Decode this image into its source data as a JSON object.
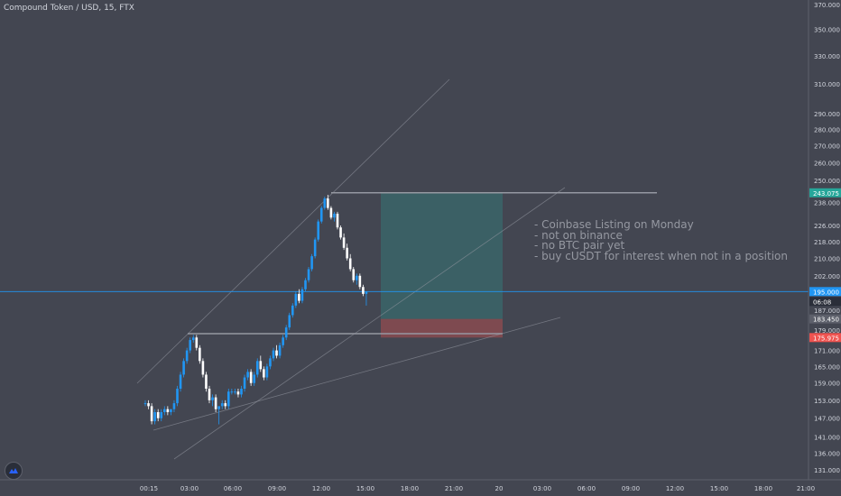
{
  "header": {
    "title": "Compound Token / USD, 15, FTX"
  },
  "annotation_lines": [
    "- Coinbase Listing on Monday",
    "- not on binance",
    "- no BTC pair yet",
    "- buy cUSDT for interest when not in a position"
  ],
  "colors": {
    "background": "#434651",
    "candle_up": "#2196f3",
    "candle_down": "#ffffff",
    "profit_zone": "#26a69a",
    "stop_zone": "#ef5350",
    "price_line": "#2196f3",
    "trendline": "#9598a1"
  },
  "price_labels": [
    {
      "text": "243.075",
      "color": "#26a69a"
    },
    {
      "text": "195.000",
      "color": "#2196f3"
    },
    {
      "text": "06:08",
      "color": "#2a2e39"
    },
    {
      "text": "183.450",
      "color": "#5d606b"
    },
    {
      "text": "175.975",
      "color": "#ef5350"
    }
  ],
  "chart_data": {
    "type": "candlestick",
    "y_axis_scale": "log",
    "y_ticks": [
      "370.000",
      "350.000",
      "330.000",
      "310.000",
      "290.000",
      "280.000",
      "270.000",
      "260.000",
      "250.000",
      "238.000",
      "226.000",
      "218.000",
      "210.000",
      "202.000",
      "195.000",
      "187.000",
      "179.000",
      "171.000",
      "165.000",
      "159.000",
      "153.000",
      "147.000",
      "141.000",
      "136.000",
      "131.000"
    ],
    "x_ticks": [
      "00:15",
      "03:00",
      "06:00",
      "09:00",
      "12:00",
      "15:00",
      "18:00",
      "21:00",
      "20",
      "03:00",
      "06:00",
      "09:00",
      "12:00",
      "15:00",
      "18:00",
      "21:00"
    ],
    "candles": [
      [
        152,
        153,
        151,
        152
      ],
      [
        152,
        153,
        150,
        151
      ],
      [
        151,
        152,
        145,
        146
      ],
      [
        146,
        150,
        145,
        149
      ],
      [
        149,
        150,
        146,
        147
      ],
      [
        147,
        150,
        146,
        149
      ],
      [
        149,
        151,
        148,
        150
      ],
      [
        150,
        151,
        148,
        149
      ],
      [
        149,
        150,
        148,
        150
      ],
      [
        150,
        153,
        149,
        152
      ],
      [
        152,
        158,
        151,
        157
      ],
      [
        157,
        163,
        156,
        162
      ],
      [
        162,
        168,
        161,
        167
      ],
      [
        167,
        172,
        166,
        171
      ],
      [
        171,
        176,
        170,
        175
      ],
      [
        175,
        177,
        174,
        176
      ],
      [
        176,
        177,
        171,
        172
      ],
      [
        172,
        173,
        166,
        167
      ],
      [
        167,
        168,
        161,
        162
      ],
      [
        162,
        163,
        156,
        157
      ],
      [
        157,
        158,
        152,
        153
      ],
      [
        153,
        155,
        151,
        154
      ],
      [
        154,
        155,
        149,
        150
      ],
      [
        150,
        151,
        145,
        151
      ],
      [
        151,
        153,
        150,
        152
      ],
      [
        152,
        153,
        150,
        151
      ],
      [
        151,
        157,
        150,
        156
      ],
      [
        156,
        157,
        155,
        156
      ],
      [
        156,
        157,
        155,
        156
      ],
      [
        156,
        157,
        154,
        155
      ],
      [
        155,
        158,
        154,
        157
      ],
      [
        157,
        162,
        156,
        161
      ],
      [
        161,
        164,
        160,
        163
      ],
      [
        163,
        164,
        158,
        159
      ],
      [
        159,
        163,
        158,
        162
      ],
      [
        162,
        168,
        161,
        167
      ],
      [
        167,
        169,
        163,
        164
      ],
      [
        164,
        165,
        160,
        161
      ],
      [
        161,
        166,
        160,
        165
      ],
      [
        165,
        169,
        164,
        168
      ],
      [
        168,
        172,
        167,
        171
      ],
      [
        171,
        173,
        168,
        169
      ],
      [
        169,
        174,
        168,
        173
      ],
      [
        173,
        177,
        172,
        176
      ],
      [
        176,
        181,
        175,
        180
      ],
      [
        180,
        186,
        179,
        185
      ],
      [
        185,
        190,
        184,
        189
      ],
      [
        189,
        195,
        188,
        194
      ],
      [
        194,
        196,
        190,
        191
      ],
      [
        191,
        197,
        190,
        196
      ],
      [
        196,
        201,
        195,
        200
      ],
      [
        200,
        206,
        199,
        205
      ],
      [
        205,
        212,
        204,
        211
      ],
      [
        211,
        220,
        210,
        219
      ],
      [
        219,
        229,
        218,
        228
      ],
      [
        228,
        236,
        227,
        235
      ],
      [
        235,
        241,
        234,
        240
      ],
      [
        240,
        242,
        234,
        235
      ],
      [
        235,
        236,
        229,
        230
      ],
      [
        230,
        233,
        228,
        232
      ],
      [
        232,
        233,
        224,
        225
      ],
      [
        225,
        226,
        219,
        220
      ],
      [
        220,
        222,
        214,
        215
      ],
      [
        215,
        217,
        209,
        210
      ],
      [
        210,
        212,
        204,
        205
      ],
      [
        205,
        206,
        199,
        200
      ],
      [
        200,
        203,
        198,
        202
      ],
      [
        202,
        203,
        196,
        197
      ],
      [
        197,
        198,
        193,
        194
      ],
      [
        194,
        195,
        189,
        195
      ]
    ],
    "current_price": 195.0,
    "long_position": {
      "target": 243.075,
      "entry": 183.45,
      "stop": 175.975
    },
    "resistance_levels": [
      243.075,
      177.5
    ]
  }
}
